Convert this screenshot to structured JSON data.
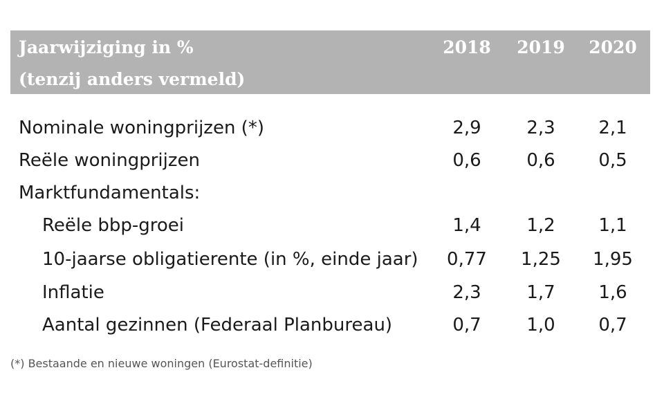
{
  "header": {
    "title_line1": "Jaarwijziging in %",
    "title_line2": "(tenzij anders vermeld)",
    "years": [
      "2018",
      "2019",
      "2020"
    ]
  },
  "rows": [
    {
      "label": "Nominale woningprijzen (*)",
      "values": [
        "2,9",
        "2,3",
        "2,1"
      ]
    },
    {
      "label": "Reële woningprijzen",
      "values": [
        "0,6",
        "0,6",
        "0,5"
      ]
    },
    {
      "label": "Marktfundamentals:",
      "values": [
        "",
        "",
        ""
      ]
    },
    {
      "label": "Reële bbp-groei",
      "values": [
        "1,4",
        "1,2",
        "1,1"
      ]
    },
    {
      "label": "10-jaarse obligatierente (in %, einde jaar)",
      "values": [
        "0,77",
        "1,25",
        "1,95"
      ]
    },
    {
      "label": "Inflatie",
      "values": [
        "2,3",
        "1,7",
        "1,6"
      ]
    },
    {
      "label": "Aantal gezinnen (Federaal Planbureau)",
      "values": [
        "0,7",
        "1,0",
        "0,7"
      ]
    }
  ],
  "footnote": "(*) Bestaande en nieuwe woningen (Eurostat-definitie)",
  "colors": {
    "header_bg": "#b3b3b3",
    "header_text": "#ffffff",
    "body_text": "#1a1a1a"
  }
}
